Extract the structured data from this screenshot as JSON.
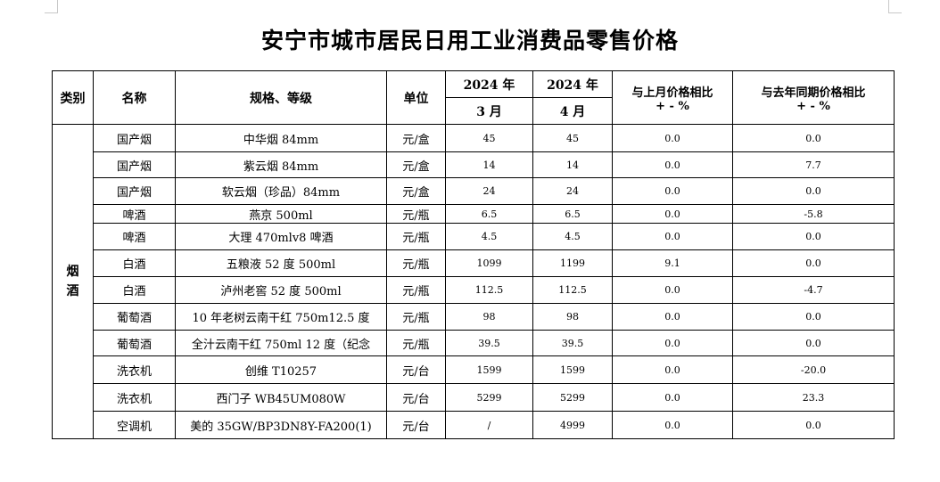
{
  "title": "安宁市城市居民日用工业消费品零售价格",
  "headers": {
    "category": "类别",
    "name": "名称",
    "spec": "规格、等级",
    "unit": "单位",
    "year1": "2024 年",
    "month1": "3 月",
    "year2": "2024 年",
    "month2": "4 月",
    "mom_line1": "与上月价格相比",
    "mom_line2": "+ - %",
    "yoy_line1": "与去年同期价格相比",
    "yoy_line2": "+ - %"
  },
  "category_label": "烟酒",
  "rows": [
    {
      "name": "国产烟",
      "spec": "中华烟 84mm",
      "unit": "元/盒",
      "mar": "45",
      "apr": "45",
      "mom": "0.0",
      "yoy": "0.0"
    },
    {
      "name": "国产烟",
      "spec": "紫云烟 84mm",
      "unit": "元/盒",
      "mar": "14",
      "apr": "14",
      "mom": "0.0",
      "yoy": "7.7"
    },
    {
      "name": "国产烟",
      "spec": "软云烟（珍品）84mm",
      "unit": "元/盒",
      "mar": "24",
      "apr": "24",
      "mom": "0.0",
      "yoy": "0.0"
    },
    {
      "name": "啤酒",
      "spec": "燕京 500ml",
      "unit": "元/瓶",
      "mar": "6.5",
      "apr": "6.5",
      "mom": "0.0",
      "yoy": "-5.8"
    },
    {
      "name": "啤酒",
      "spec": "大理 470mlv8 啤酒",
      "unit": "元/瓶",
      "mar": "4.5",
      "apr": "4.5",
      "mom": "0.0",
      "yoy": "0.0"
    },
    {
      "name": "白酒",
      "spec": "五粮液 52 度 500ml",
      "unit": "元/瓶",
      "mar": "1099",
      "apr": "1199",
      "mom": "9.1",
      "yoy": "0.0"
    },
    {
      "name": "白酒",
      "spec": "泸州老窖 52 度 500ml",
      "unit": "元/瓶",
      "mar": "112.5",
      "apr": "112.5",
      "mom": "0.0",
      "yoy": "-4.7"
    },
    {
      "name": "葡萄酒",
      "spec": "10 年老树云南干红  750m12.5 度",
      "unit": "元/瓶",
      "mar": "98",
      "apr": "98",
      "mom": "0.0",
      "yoy": "0.0"
    },
    {
      "name": "葡萄酒",
      "spec": "全汁云南干红 750ml 12 度（纪念",
      "unit": "元/瓶",
      "mar": "39.5",
      "apr": "39.5",
      "mom": "0.0",
      "yoy": "0.0"
    },
    {
      "name": "洗衣机",
      "spec": "创维 T10257",
      "unit": "元/台",
      "mar": "1599",
      "apr": "1599",
      "mom": "0.0",
      "yoy": "-20.0"
    },
    {
      "name": "洗衣机",
      "spec": "西门子 WB45UM080W",
      "unit": "元/台",
      "mar": "5299",
      "apr": "5299",
      "mom": "0.0",
      "yoy": "23.3"
    },
    {
      "name": "空调机",
      "spec": "美的 35GW/BP3DN8Y-FA200(1)",
      "unit": "元/台",
      "mar": "/",
      "apr": "4999",
      "mom": "0.0",
      "yoy": "0.0"
    }
  ]
}
